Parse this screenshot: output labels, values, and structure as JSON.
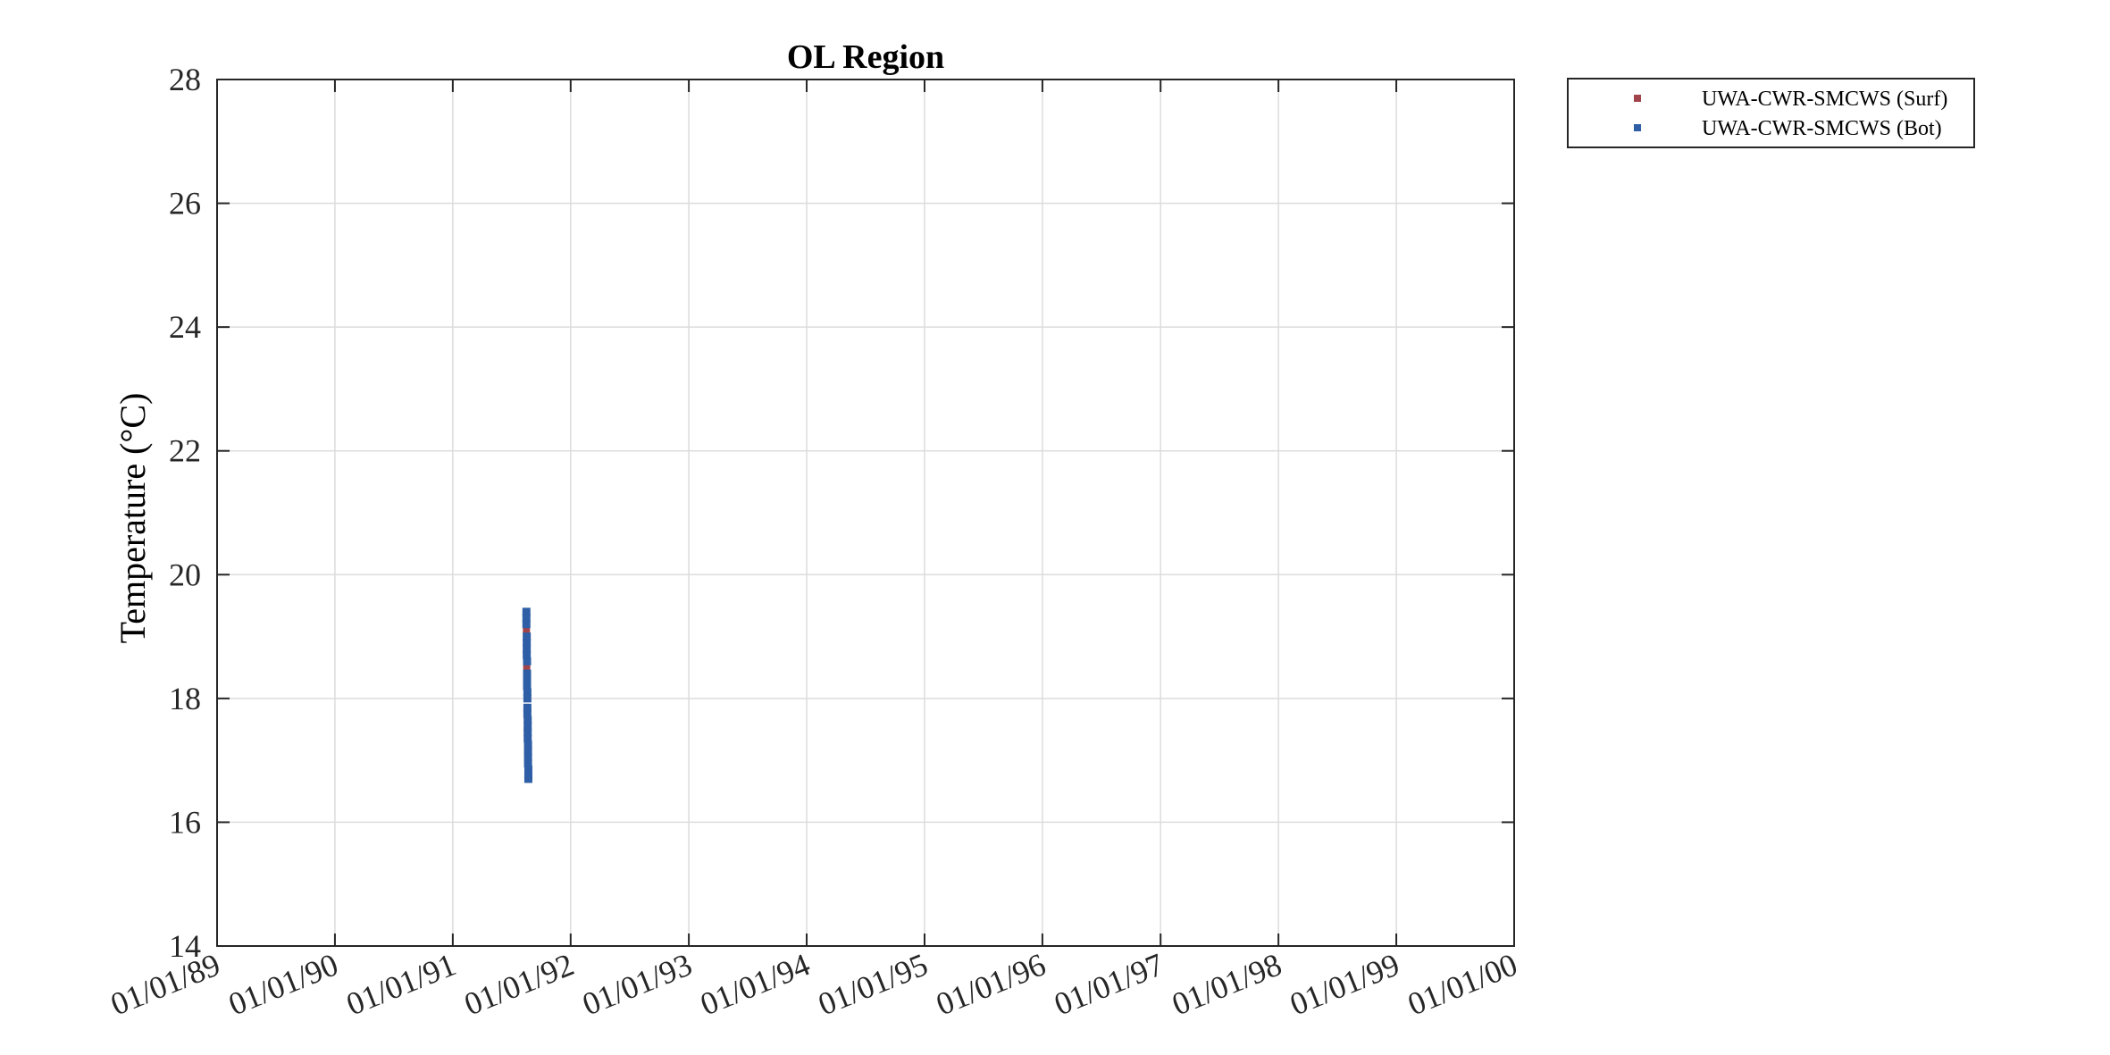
{
  "chart_data": {
    "type": "scatter",
    "title": "OL Region",
    "xlabel": "",
    "ylabel": "Temperature (°C)",
    "ylim": [
      14,
      28
    ],
    "yticks": [
      14,
      16,
      18,
      20,
      22,
      24,
      26,
      28
    ],
    "xlim": [
      "1989-01-01",
      "2000-01-01"
    ],
    "xtick_labels": [
      "01/01/89",
      "01/01/90",
      "01/01/91",
      "01/01/92",
      "01/01/93",
      "01/01/94",
      "01/01/95",
      "01/01/96",
      "01/01/97",
      "01/01/98",
      "01/01/99",
      "01/01/00"
    ],
    "grid": true,
    "legend_position": "outside-top-right",
    "series": [
      {
        "name": "UWA-CWR-SMCWS (Surf)",
        "color": "#a0434a",
        "marker": "square",
        "x": [
          "1991-08-17",
          "1991-08-17",
          "1991-08-18",
          "1991-08-18",
          "1991-08-18",
          "1991-08-19",
          "1991-08-19",
          "1991-08-19",
          "1991-08-20",
          "1991-08-20",
          "1991-08-20",
          "1991-08-21",
          "1991-08-21",
          "1991-08-21",
          "1991-08-22",
          "1991-08-22",
          "1991-08-22",
          "1991-08-23"
        ],
        "y": [
          19.3,
          19.1,
          18.9,
          18.7,
          18.5,
          18.4,
          18.2,
          18.0,
          17.8,
          17.7,
          17.5,
          17.4,
          17.2,
          17.1,
          17.0,
          16.9,
          17.3,
          16.8
        ]
      },
      {
        "name": "UWA-CWR-SMCWS (Bot)",
        "color": "#2e5fa6",
        "marker": "square",
        "x": [
          "1991-08-17",
          "1991-08-17",
          "1991-08-17",
          "1991-08-18",
          "1991-08-18",
          "1991-08-18",
          "1991-08-18",
          "1991-08-19",
          "1991-08-19",
          "1991-08-19",
          "1991-08-19",
          "1991-08-20",
          "1991-08-20",
          "1991-08-20",
          "1991-08-20",
          "1991-08-21",
          "1991-08-21",
          "1991-08-21",
          "1991-08-21",
          "1991-08-22",
          "1991-08-22",
          "1991-08-22",
          "1991-08-22",
          "1991-08-23",
          "1991-08-23",
          "1991-08-23"
        ],
        "y": [
          19.4,
          19.3,
          19.2,
          19.0,
          18.9,
          18.8,
          18.7,
          18.6,
          18.4,
          18.3,
          18.2,
          18.1,
          18.0,
          17.85,
          17.75,
          17.65,
          17.55,
          17.45,
          17.35,
          17.25,
          17.15,
          17.05,
          16.95,
          16.85,
          16.75,
          16.7
        ]
      }
    ]
  }
}
